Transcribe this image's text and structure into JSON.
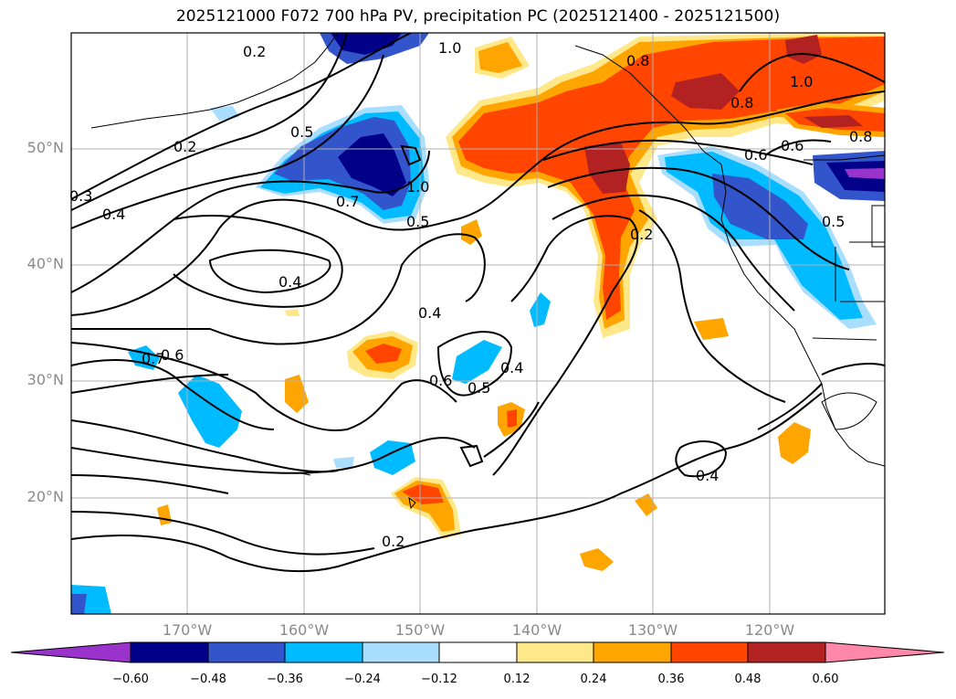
{
  "title": "2025121000 F072 700 hPa PV, precipitation PC (2025121400 - 2025121500)",
  "map": {
    "lat_labels": [
      "50°N",
      "40°N",
      "30°N",
      "20°N"
    ],
    "lon_labels": [
      "170°W",
      "160°W",
      "150°W",
      "140°W",
      "130°W",
      "120°W"
    ],
    "grid": true,
    "contour_labels": [
      "0.2",
      "1.0",
      "0.8",
      "1.0",
      "0.8",
      "0.5",
      "0.2",
      "0.3",
      "0.4",
      "1.0",
      "0.7",
      "0.5",
      "0.6",
      "0.8",
      "0.6",
      "0.5",
      "0.2",
      "0.4",
      "0.4",
      "0.6",
      "0.6",
      "0.5",
      "0.4",
      "0.7",
      "0.2",
      "0.4"
    ]
  },
  "colorbar": {
    "tick_labels": [
      "−0.60",
      "−0.48",
      "−0.36",
      "−0.24",
      "−0.12",
      "0.12",
      "0.24",
      "0.36",
      "0.48",
      "0.60"
    ],
    "colors": [
      "#9933cc",
      "#000088",
      "#3355cc",
      "#00bbff",
      "#aadeff",
      "#ffffff",
      "#ffe88a",
      "#ffa500",
      "#ff4500",
      "#b22222",
      "#ff88aa"
    ]
  },
  "fill_colors": {
    "neg_strong": "#000088",
    "neg_mid": "#3355cc",
    "neg": "#00bbff",
    "neg_light": "#aadeff",
    "pos_light": "#ffe88a",
    "pos": "#ffa500",
    "pos_mid": "#ff4500",
    "pos_strong": "#b22222",
    "purple": "#9933cc"
  }
}
